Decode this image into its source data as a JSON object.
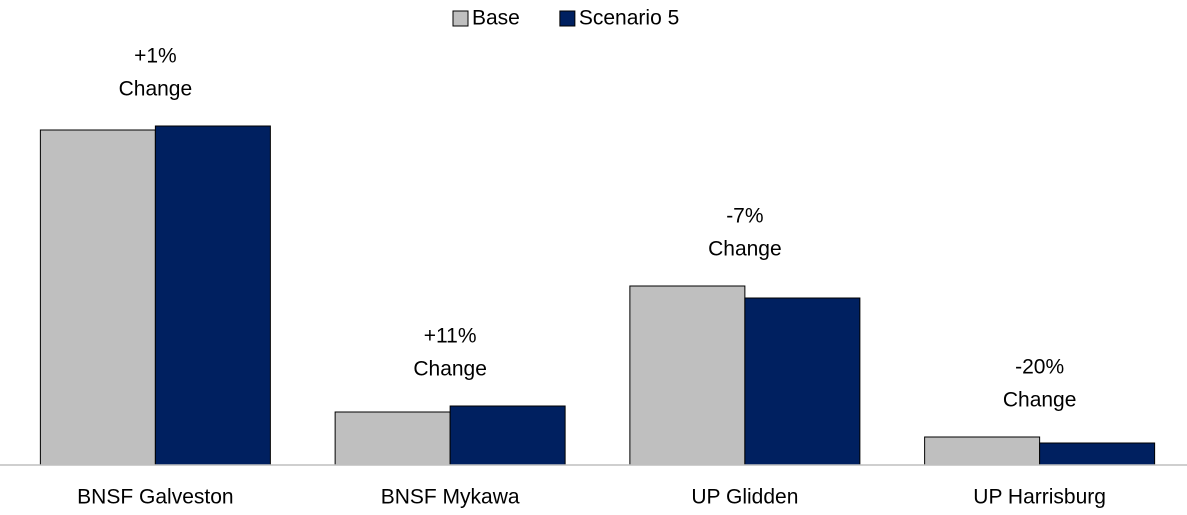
{
  "chart_data": {
    "type": "bar",
    "categories": [
      "BNSF Galveston",
      "BNSF Mykawa",
      "UP Glidden",
      "UP Harrisburg"
    ],
    "series": [
      {
        "name": "Base",
        "color": "#bfbfbf",
        "values": [
          335,
          53,
          179,
          28
        ]
      },
      {
        "name": "Scenario 5",
        "color": "#002060",
        "values": [
          339,
          59,
          167,
          22
        ]
      }
    ],
    "annotations": [
      [
        "+1%",
        "Change"
      ],
      [
        "+11%",
        "Change"
      ],
      [
        "-7%",
        "Change"
      ],
      [
        "-20%",
        "Change"
      ]
    ],
    "ylim": [
      0,
      350
    ],
    "legend": "top"
  }
}
